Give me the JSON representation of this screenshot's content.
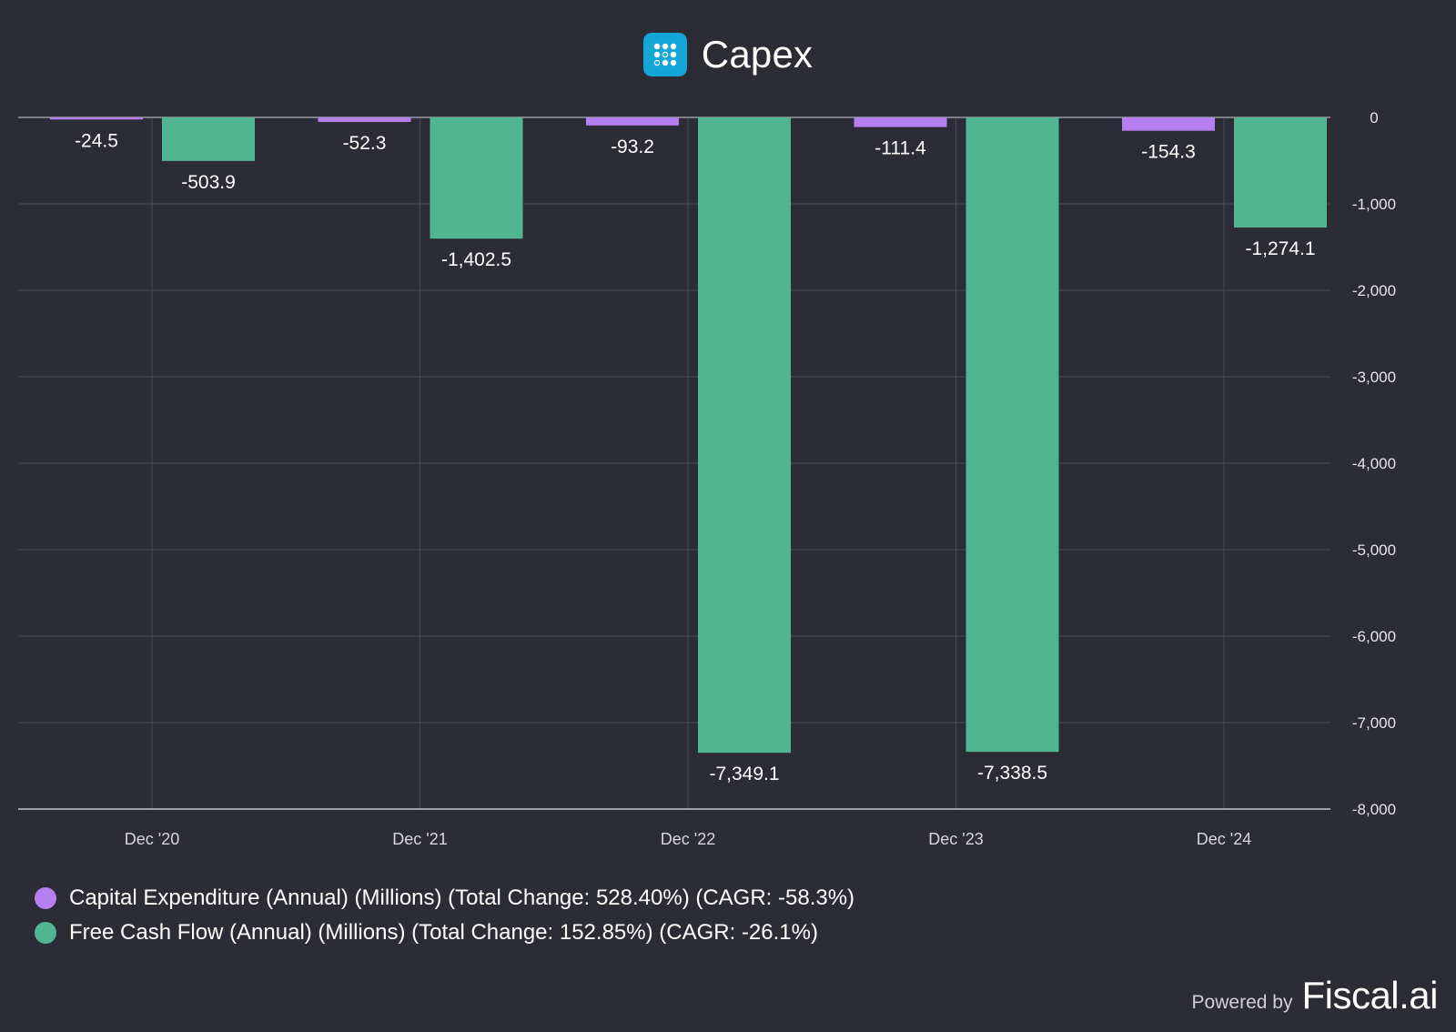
{
  "header": {
    "title": "Capex"
  },
  "colors": {
    "background": "#2b2c35",
    "capex": "#b57ff0",
    "fcf": "#52b592",
    "grid": "#4a4b55",
    "axis": "#9a9aa2"
  },
  "chart_data": {
    "type": "bar",
    "title": "Capex",
    "categories": [
      "Dec '20",
      "Dec '21",
      "Dec '22",
      "Dec '23",
      "Dec '24"
    ],
    "series": [
      {
        "name": "Capital Expenditure (Annual) (Millions) (Total Change: 528.40%) (CAGR: -58.3%)",
        "values": [
          -24.5,
          -52.3,
          -93.2,
          -111.4,
          -154.3
        ],
        "labels": [
          "-24.5",
          "-52.3",
          "-93.2",
          "-111.4",
          "-154.3"
        ]
      },
      {
        "name": "Free Cash Flow (Annual) (Millions) (Total Change: 152.85%) (CAGR: -26.1%)",
        "values": [
          -503.9,
          -1402.5,
          -7349.1,
          -7338.5,
          -1274.1
        ],
        "labels": [
          "-503.9",
          "-1,402.5",
          "-7,349.1",
          "-7,338.5",
          "-1,274.1"
        ]
      }
    ],
    "ylim": [
      -8000,
      0
    ],
    "yticks": [
      0,
      -1000,
      -2000,
      -3000,
      -4000,
      -5000,
      -6000,
      -7000,
      -8000
    ],
    "ytick_labels": [
      "0",
      "-1,000",
      "-2,000",
      "-3,000",
      "-4,000",
      "-5,000",
      "-6,000",
      "-7,000",
      "-8,000"
    ],
    "y_axis_side": "right",
    "grid": true,
    "legend_position": "bottom-left"
  },
  "legend": {
    "items": [
      "Capital Expenditure (Annual) (Millions) (Total Change: 528.40%) (CAGR: -58.3%)",
      "Free Cash Flow (Annual) (Millions) (Total Change: 152.85%) (CAGR: -26.1%)"
    ]
  },
  "footer": {
    "powered_label": "Powered by",
    "brand": "Fiscal.ai"
  }
}
